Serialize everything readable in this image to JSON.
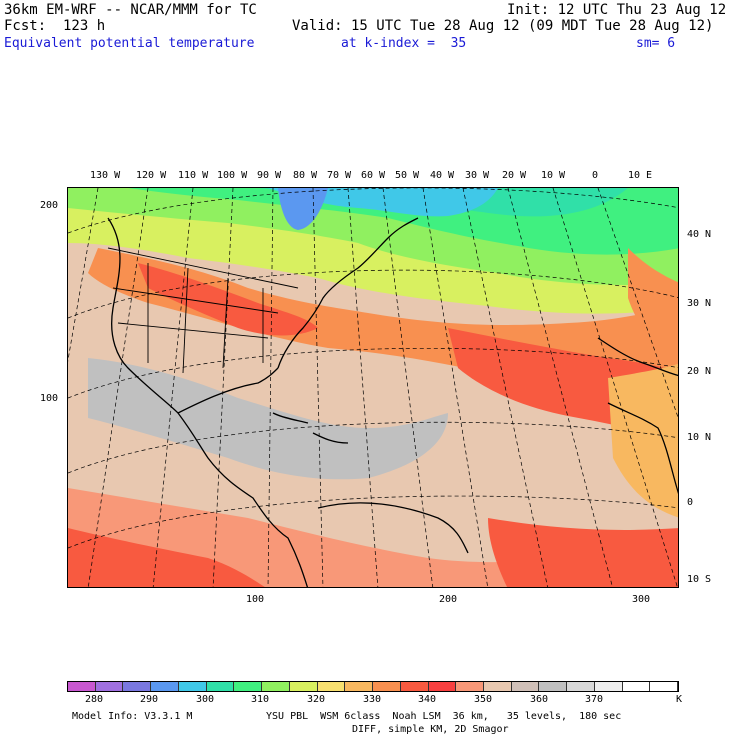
{
  "header": {
    "model": "36km EM-WRF -- NCAR/MMM for TC",
    "init": "Init: 12 UTC Thu 23 Aug 12",
    "fcst": "Fcst:  123 h",
    "valid": "Valid: 15 UTC Tue 28 Aug 12 (09 MDT Tue 28 Aug 12)",
    "field": "Equivalent potential temperature",
    "level": "at k-index =  35",
    "smooth": "sm= 6"
  },
  "top_lon_labels": [
    "130 W",
    "120 W",
    "110 W",
    "100 W",
    "90 W",
    "80 W",
    "70 W",
    "60 W",
    "50 W",
    "40 W",
    "30 W",
    "20 W",
    "10 W",
    "0",
    "10 E"
  ],
  "right_lat_labels": [
    "40 N",
    "30 N",
    "20 N",
    "10 N",
    "0",
    "10 S"
  ],
  "left_y_labels": [
    "200",
    "100"
  ],
  "bottom_x_labels": [
    "100",
    "200",
    "300"
  ],
  "colorbar": {
    "labels": [
      "280",
      "290",
      "300",
      "310",
      "320",
      "330",
      "340",
      "350",
      "360",
      "370"
    ],
    "unit": "K",
    "colors": [
      "#c858d0",
      "#a070e0",
      "#7a78e0",
      "#5b98f0",
      "#40c8e8",
      "#30e0a8",
      "#40f080",
      "#90f060",
      "#d8f060",
      "#f8e070",
      "#f8b860",
      "#f89050",
      "#f85a40",
      "#f84040",
      "#f89878",
      "#e8c8b0",
      "#d0c0b8",
      "#c0c0c0",
      "#d8d8d8",
      "#eeeeee",
      "#ffffff",
      "#ffffff"
    ]
  },
  "footer": {
    "line1_left": "Model Info: V3.3.1 M",
    "line1_right": "YSU PBL  WSM 6class  Noah LSM  36 km,   35 levels,  180 sec",
    "line2": "DIFF, simple KM, 2D Smagor"
  }
}
